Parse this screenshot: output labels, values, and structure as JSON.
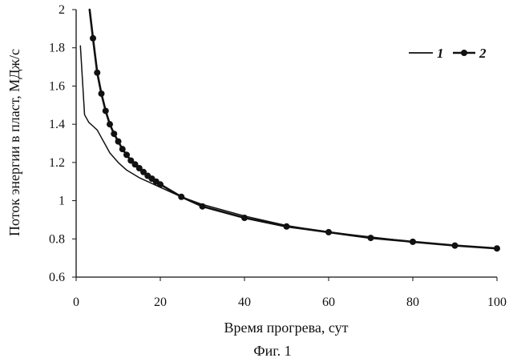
{
  "chart_data": {
    "type": "line",
    "title": "",
    "caption": "Фиг. 1",
    "xlabel": "Время прогрева, сут",
    "ylabel": "Поток энергии в пласт, МДж/с",
    "xlim": [
      0,
      100
    ],
    "ylim": [
      0.6,
      2.0
    ],
    "x_ticks": [
      0,
      20,
      40,
      60,
      80,
      100
    ],
    "y_ticks": [
      0.6,
      0.8,
      1.0,
      1.2,
      1.4,
      1.6,
      1.8,
      2.0
    ],
    "x_tick_labels": [
      "0",
      "20",
      "40",
      "60",
      "80",
      "100"
    ],
    "y_tick_labels": [
      "0.6",
      "0.8",
      "1",
      "1.2",
      "1.4",
      "1.6",
      "1.8",
      "2"
    ],
    "legend_position": "top-right",
    "grid": false,
    "series": [
      {
        "name": "1",
        "style": "line",
        "color": "#111111",
        "x": [
          1,
          2,
          3,
          4,
          5,
          6,
          7,
          8,
          10,
          12,
          15,
          18,
          20,
          25,
          30,
          40,
          50,
          60,
          70,
          80,
          90,
          100
        ],
        "y": [
          1.81,
          1.45,
          1.41,
          1.39,
          1.37,
          1.33,
          1.29,
          1.25,
          1.2,
          1.16,
          1.12,
          1.09,
          1.07,
          1.02,
          0.98,
          0.92,
          0.87,
          0.835,
          0.81,
          0.785,
          0.765,
          0.75
        ]
      },
      {
        "name": "2",
        "style": "line-marker",
        "color": "#111111",
        "x": [
          3.2,
          4,
          5,
          6,
          7,
          8,
          9,
          10,
          11,
          12,
          13,
          14,
          15,
          16,
          17,
          18,
          19,
          20,
          25,
          30,
          40,
          50,
          60,
          70,
          80,
          90,
          100
        ],
        "y": [
          2.0,
          1.85,
          1.67,
          1.56,
          1.47,
          1.4,
          1.35,
          1.31,
          1.27,
          1.24,
          1.21,
          1.19,
          1.17,
          1.15,
          1.13,
          1.115,
          1.1,
          1.085,
          1.02,
          0.97,
          0.91,
          0.865,
          0.835,
          0.805,
          0.785,
          0.765,
          0.75
        ],
        "marker_x": [
          4,
          5,
          6,
          7,
          8,
          9,
          10,
          11,
          12,
          13,
          14,
          15,
          16,
          17,
          18,
          19,
          20,
          25,
          30,
          40,
          50,
          60,
          70,
          80,
          90,
          100
        ]
      }
    ]
  }
}
